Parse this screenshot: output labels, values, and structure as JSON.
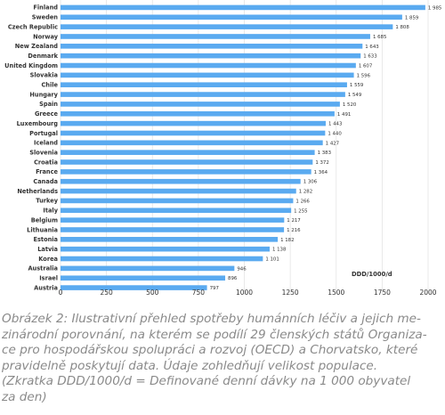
{
  "chart_data": {
    "type": "bar",
    "orientation": "horizontal",
    "categories": [
      "Finland",
      "Sweden",
      "Czech Republic",
      "Norway",
      "New Zealand",
      "Denmark",
      "United Kingdom",
      "Slovakia",
      "Chile",
      "Hungary",
      "Spain",
      "Greece",
      "Luxembourg",
      "Portugal",
      "Iceland",
      "Slovenia",
      "Croatia",
      "France",
      "Canada",
      "Netherlands",
      "Turkey",
      "Italy",
      "Belgium",
      "Lithuania",
      "Estonia",
      "Latvia",
      "Korea",
      "Australia",
      "Israel",
      "Austria"
    ],
    "values": [
      1985,
      1859,
      1808,
      1685,
      1643,
      1633,
      1607,
      1596,
      1559,
      1549,
      1520,
      1491,
      1443,
      1440,
      1427,
      1383,
      1372,
      1364,
      1306,
      1282,
      1266,
      1255,
      1217,
      1216,
      1182,
      1138,
      1101,
      946,
      896,
      797
    ],
    "value_labels": [
      "1 985",
      "1 859",
      "1 808",
      "1 685",
      "1 643",
      "1 633",
      "1 607",
      "1 596",
      "1 559",
      "1 549",
      "1 520",
      "1 491",
      "1 443",
      "1 440",
      "1 427",
      "1 383",
      "1 372",
      "1 364",
      "1 306",
      "1 282",
      "1 266",
      "1 255",
      "1 217",
      "1 216",
      "1 182",
      "1 138",
      "1 101",
      "946",
      "896",
      "797"
    ],
    "x_ticks": [
      0,
      250,
      500,
      750,
      1000,
      1250,
      1500,
      1750,
      2000
    ],
    "xlim": [
      0,
      2000
    ],
    "unit_label": "DDD/1000/d",
    "bar_color": "#5aaaf0",
    "grid": true
  },
  "caption": {
    "line1": "Obrázek 2: Ilustrativní přehled spotřeby humánních léčiv a jejich me-",
    "line2": "zinárodní porovnání, na kterém se podílí 29 členských států Organiza-",
    "line3": "ce pro hospodářskou spolupráci a rozvoj (OECD) a Chorvatsko, které",
    "line4": "pravidelně poskytují data. Údaje zohledňují velikost populace.",
    "line5": "(Zkratka DDD/1000/d = Definované denní dávky na 1 000 obyvatel",
    "line6": "za den)"
  }
}
